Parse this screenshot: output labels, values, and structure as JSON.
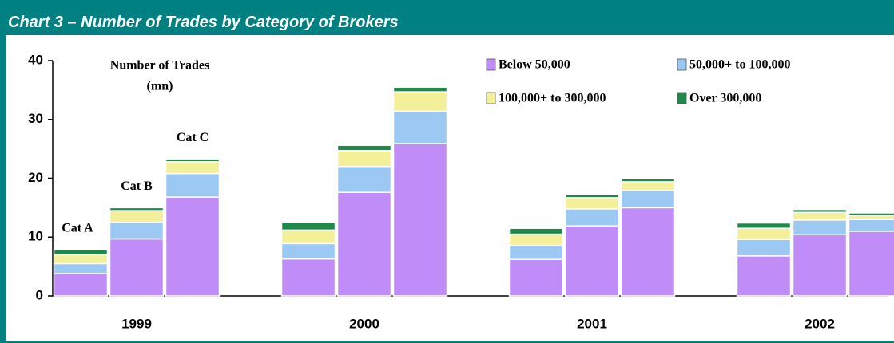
{
  "chart_data": {
    "type": "stacked_bar",
    "title": "Chart 3 – Number of Trades by Category of Brokers",
    "annotation_lines": [
      "Number of Trades",
      "(mn)"
    ],
    "categories": [
      "1999",
      "2000",
      "2001",
      "2002"
    ],
    "subcategories": [
      "Cat A",
      "Cat B",
      "Cat C"
    ],
    "series": [
      {
        "name": "Below 50,000",
        "color": "#c08cf8",
        "values": [
          [
            3.8,
            9.7,
            16.8
          ],
          [
            6.3,
            17.6,
            25.9
          ],
          [
            6.2,
            11.9,
            15.0
          ],
          [
            6.8,
            10.4,
            11.0
          ]
        ]
      },
      {
        "name": "50,000+ to 100,000",
        "color": "#9cc8f4",
        "values": [
          [
            1.7,
            2.8,
            4.0
          ],
          [
            2.6,
            4.4,
            5.5
          ],
          [
            2.4,
            2.9,
            2.9
          ],
          [
            2.8,
            2.5,
            2.0
          ]
        ]
      },
      {
        "name": "100,000+ to 300,000",
        "color": "#f4f09a",
        "values": [
          [
            1.5,
            2.0,
            2.0
          ],
          [
            2.3,
            2.7,
            3.3
          ],
          [
            1.9,
            1.9,
            1.5
          ],
          [
            1.9,
            1.3,
            0.7
          ]
        ]
      },
      {
        "name": "Over 300,000",
        "color": "#1e8a4a",
        "values": [
          [
            0.9,
            0.5,
            0.5
          ],
          [
            1.3,
            0.9,
            0.8
          ],
          [
            1.0,
            0.5,
            0.5
          ],
          [
            0.9,
            0.5,
            0.4
          ]
        ]
      }
    ],
    "ylim": [
      0,
      40
    ],
    "yticks": [
      0,
      10,
      20,
      30,
      40
    ]
  }
}
